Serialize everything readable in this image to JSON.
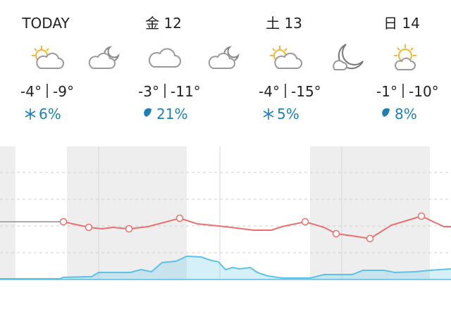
{
  "days": [
    {
      "label": "TODAY",
      "high": "-4°",
      "low": "-9°",
      "precip": "6%",
      "precip_kind": "snow"
    },
    {
      "label": "金 12",
      "high": "-3°",
      "low": "-11°",
      "precip": "21%",
      "precip_kind": "rain"
    },
    {
      "label": "土 13",
      "high": "-4°",
      "low": "-15°",
      "precip": "5%",
      "precip_kind": "snow"
    },
    {
      "label": "日 14",
      "high": "-1°",
      "low": "-10°",
      "precip": "8%",
      "precip_kind": "rain"
    }
  ],
  "chart_data": {
    "type": "line",
    "ylim": [
      0,
      190
    ],
    "series": [
      {
        "color": "#a9a9a9",
        "x": [
          0,
          50,
          90
        ],
        "values": [
          83,
          83,
          83
        ]
      },
      {
        "color": "#e8706f",
        "x": [
          90,
          126,
          145,
          160,
          183,
          210,
          255,
          280,
          320,
          360,
          385,
          400,
          433,
          460,
          477,
          500,
          525,
          555,
          598,
          630,
          640
        ],
        "values": [
          83,
          75,
          73,
          75,
          73,
          76,
          88,
          80,
          76,
          71,
          71,
          76,
          83,
          75,
          66,
          63,
          59,
          78,
          91,
          76,
          76
        ],
        "markers": [
          0,
          1,
          4,
          6,
          12,
          14,
          16,
          18
        ]
      }
    ],
    "precipitation": {
      "color": "#5bc2e7",
      "x": [
        0,
        85,
        90,
        130,
        140,
        185,
        200,
        215,
        230,
        250,
        265,
        285,
        300,
        310,
        320,
        330,
        340,
        355,
        365,
        380,
        400,
        440,
        460,
        500,
        515,
        545,
        560,
        590,
        610,
        640
      ],
      "values": [
        2,
        2,
        4,
        5,
        11,
        11,
        15,
        12,
        25,
        27,
        34,
        33,
        28,
        26,
        15,
        18,
        16,
        18,
        11,
        6,
        3,
        3,
        8,
        8,
        14,
        14,
        11,
        12,
        14,
        16
      ]
    }
  }
}
